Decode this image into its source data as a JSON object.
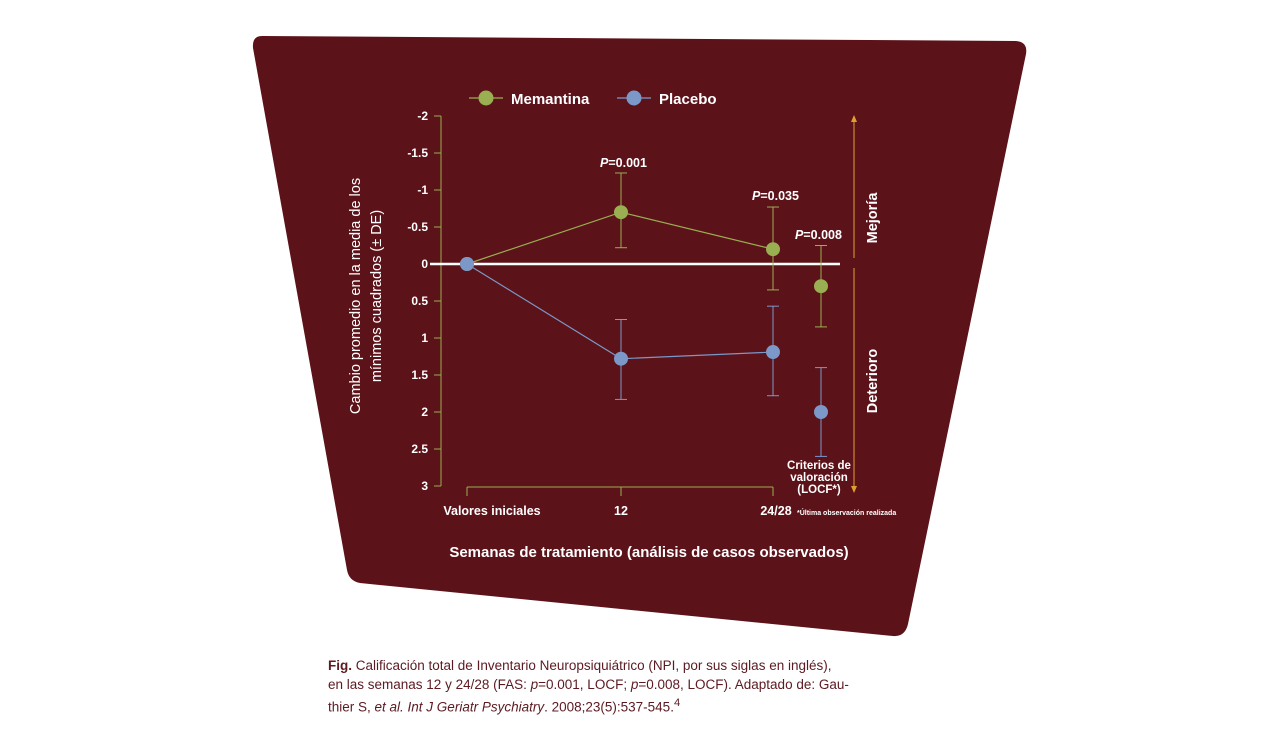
{
  "chart_data": {
    "type": "line",
    "legend": [
      "Memantina",
      "Placebo"
    ],
    "xlabel": "Semanas de tratamiento (análisis de casos observados)",
    "ylabel_line1": "Cambio promedio en la media de los",
    "ylabel_line2": "mínimos cuadrados (± DE)",
    "ylim": [
      -2,
      3
    ],
    "y_inverted": true,
    "yticks": [
      "-2",
      "-1.5",
      "-1",
      "-0.5",
      "0",
      "0.5",
      "1",
      "1.5",
      "2",
      "2.5",
      "3"
    ],
    "ytick_values": [
      -2,
      -1.5,
      -1,
      -0.5,
      0,
      0.5,
      1,
      1.5,
      2,
      2.5,
      3
    ],
    "categories": [
      "Valores iniciales",
      "12",
      "24/28"
    ],
    "series": [
      {
        "name": "Memantina",
        "color": "#9aae52",
        "line_points": [
          [
            0,
            0
          ],
          [
            1,
            -0.7
          ],
          [
            2,
            -0.2
          ]
        ],
        "error_points": [
          {
            "x": 1,
            "y": -0.7,
            "low": -1.23,
            "high": -0.22
          },
          {
            "x": 2,
            "y": -0.2,
            "low": -0.77,
            "high": 0.35
          }
        ],
        "locf": {
          "y": 0.3,
          "low": -0.25,
          "high": 0.85
        }
      },
      {
        "name": "Placebo",
        "color": "#7b98c9",
        "line_points": [
          [
            0,
            0
          ],
          [
            1,
            1.28
          ],
          [
            2,
            1.19
          ]
        ],
        "error_points": [
          {
            "x": 1,
            "y": 1.28,
            "low": 0.75,
            "high": 1.83
          },
          {
            "x": 2,
            "y": 1.19,
            "low": 0.57,
            "high": 1.78
          }
        ],
        "locf": {
          "y": 2.0,
          "low": 1.4,
          "high": 2.6
        }
      }
    ],
    "pvalues": [
      {
        "label_p": "P",
        "label_val": "=0.001"
      },
      {
        "label_p": "P",
        "label_val": "=0.035"
      },
      {
        "label_p": "P",
        "label_val": "=0.008"
      }
    ],
    "arrow_up_label": "Mejoría",
    "arrow_down_label": "Deterioro",
    "locf_label": [
      "Criterios de",
      "valoración",
      "(LOCF*)"
    ],
    "footnote": "*Última observación realizada",
    "colors": {
      "panel": "#5c1219",
      "axis": "#9aae52",
      "arrow": "#e0a030",
      "text": "#ffffff"
    }
  },
  "caption": {
    "fig": "Fig.",
    "line1": " Calificación total de Inventario Neuropsiquiátrico (NPI, por sus siglas en inglés),",
    "line2a": "en las semanas 12 y 24/28 (FAS: ",
    "line2_p1": "p",
    "line2b": "=0.001, LOCF; ",
    "line2_p2": "p",
    "line2c": "=0.008, LOCF). Adaptado de: Gau-",
    "line3a": "thier S, ",
    "line3_it": "et al. Int J Geriatr Psychiatry",
    "line3b": ". 2008;23(5):537-545.",
    "line3_sup": "4"
  }
}
